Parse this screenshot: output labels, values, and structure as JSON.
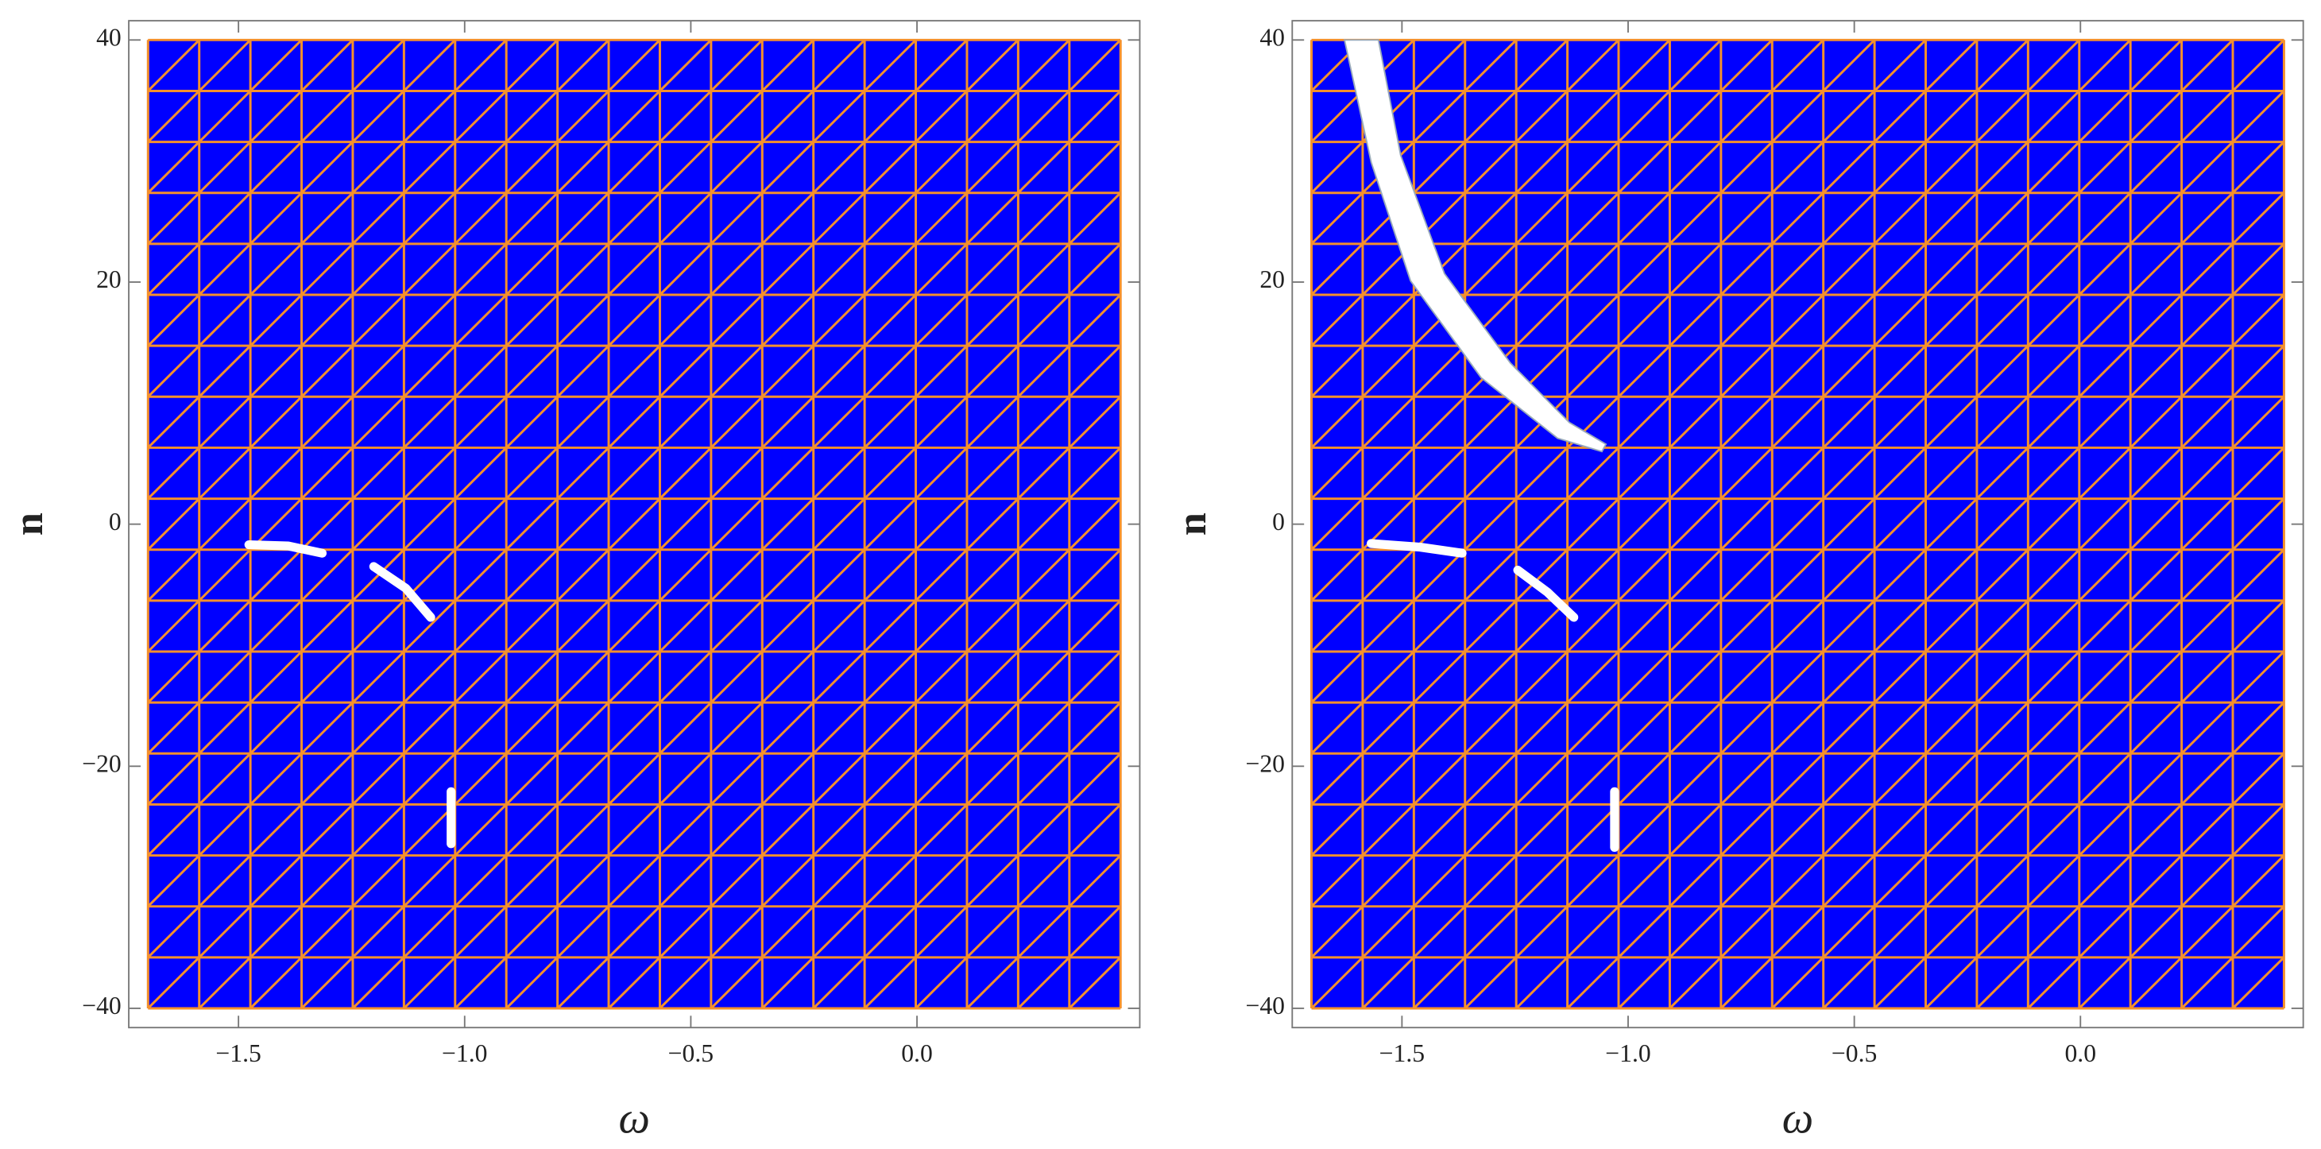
{
  "chart_data": [
    {
      "type": "region",
      "xlabel": "ω",
      "ylabel": "n",
      "xlim": [
        -1.7,
        0.45
      ],
      "ylim": [
        -40,
        40
      ],
      "xticks": [
        {
          "value": -1.5,
          "label": "−1.5"
        },
        {
          "value": -1.0,
          "label": "−1.0"
        },
        {
          "value": -0.5,
          "label": "−0.5"
        },
        {
          "value": 0.0,
          "label": "0.0"
        }
      ],
      "yticks": [
        {
          "value": -40,
          "label": "−40"
        },
        {
          "value": -20,
          "label": "−20"
        },
        0,
        20,
        40
      ],
      "fill_color": "#0000ff",
      "mesh_color": "#f4902c",
      "curve_color": "#ffffff",
      "curves": [
        {
          "x": [
            -1.477,
            -1.39,
            -1.315
          ],
          "y": [
            -1.7,
            -1.8,
            -2.4
          ]
        },
        {
          "x": [
            -1.201,
            -1.13,
            -1.075
          ],
          "y": [
            -3.5,
            -5.3,
            -7.7
          ]
        },
        {
          "x": [
            -1.03,
            -1.03
          ],
          "y": [
            -22.1,
            -26.4
          ]
        }
      ],
      "regions": []
    },
    {
      "type": "region",
      "xlabel": "ω",
      "ylabel": "n",
      "xlim": [
        -1.7,
        0.45
      ],
      "ylim": [
        -40,
        40
      ],
      "xticks": [
        {
          "value": -1.5,
          "label": "−1.5"
        },
        {
          "value": -1.0,
          "label": "−1.0"
        },
        {
          "value": -0.5,
          "label": "−0.5"
        },
        {
          "value": 0.0,
          "label": "0.0"
        }
      ],
      "yticks": [
        {
          "value": -40,
          "label": "−40"
        },
        {
          "value": -20,
          "label": "−20"
        },
        0,
        20,
        40
      ],
      "fill_color": "#0000ff",
      "mesh_color": "#f4902c",
      "curve_color": "#ffffff",
      "curves": [
        {
          "x": [
            -1.568,
            -1.46,
            -1.367
          ],
          "y": [
            -1.6,
            -1.9,
            -2.4
          ]
        },
        {
          "x": [
            -1.244,
            -1.179,
            -1.12
          ],
          "y": [
            -3.8,
            -5.6,
            -7.7
          ]
        },
        {
          "x": [
            -1.03,
            -1.03
          ],
          "y": [
            -22.1,
            -26.7
          ]
        }
      ],
      "regions": [
        {
          "x": [
            -1.627,
            -1.568,
            -1.481,
            -1.325,
            -1.156,
            -1.058,
            -1.049,
            -1.13,
            -1.26,
            -1.406,
            -1.503,
            -1.552
          ],
          "y": [
            40,
            29.9,
            20.1,
            12.1,
            7.1,
            6.0,
            6.6,
            8.4,
            13.3,
            20.7,
            30.5,
            40
          ]
        }
      ]
    }
  ]
}
